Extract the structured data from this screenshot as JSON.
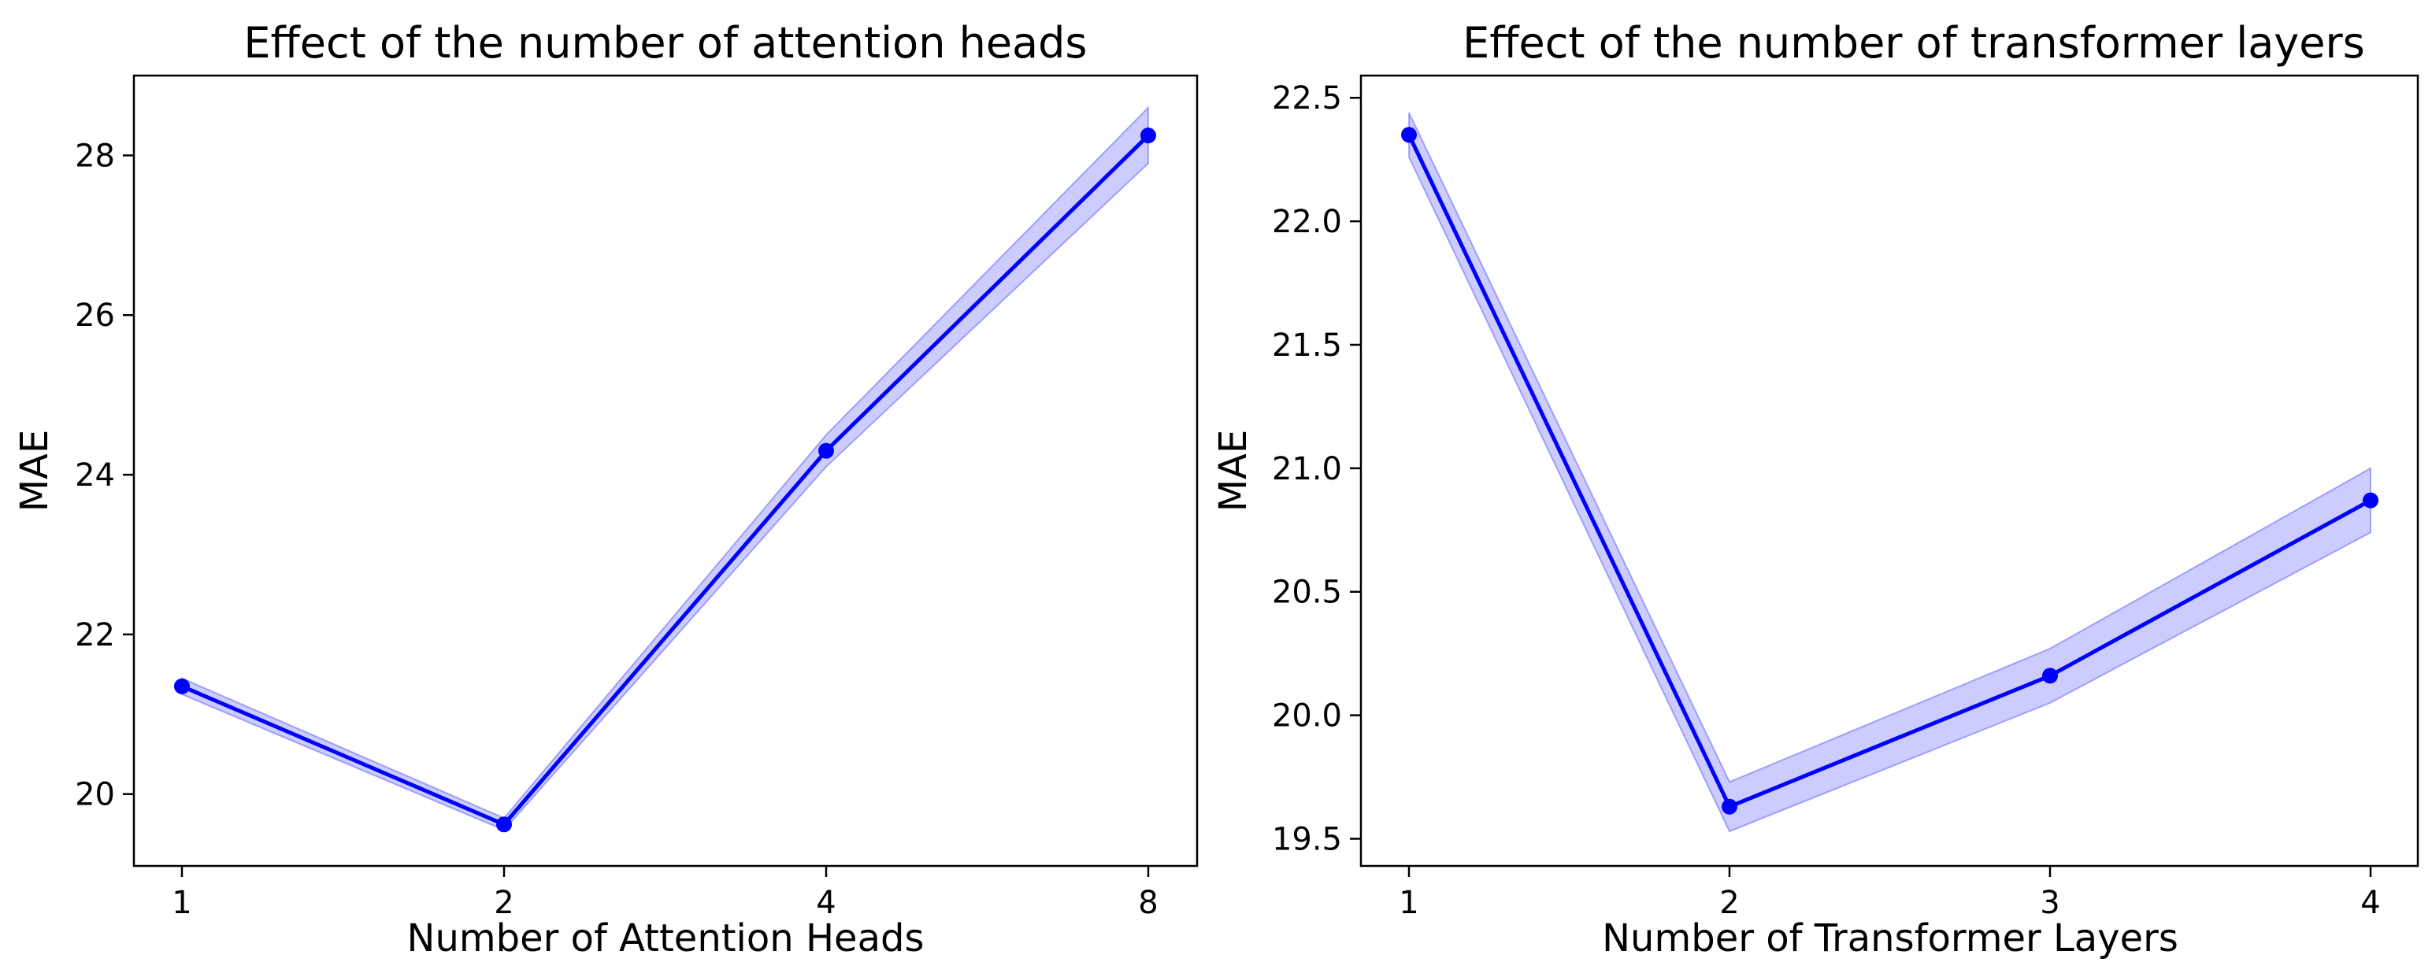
{
  "colors": {
    "line": "#0000ff",
    "band_fill": "#0000ff",
    "axes": "#000000",
    "background": "#ffffff"
  },
  "chart_data": [
    {
      "type": "line",
      "title": "Effect of the number of attention heads",
      "xlabel": "Number of Attention Heads",
      "ylabel": "MAE",
      "x_scale": "categorical",
      "categories": [
        "1",
        "2",
        "4",
        "8"
      ],
      "ylim": [
        19.1,
        29.0
      ],
      "y_ticks": [
        20,
        22,
        24,
        26,
        28
      ],
      "y_tick_labels": [
        "20",
        "22",
        "24",
        "26",
        "28"
      ],
      "grid": false,
      "series": [
        {
          "values": [
            21.35,
            19.62,
            24.3,
            28.25
          ],
          "band_lower": [
            21.25,
            19.55,
            24.1,
            27.9
          ],
          "band_upper": [
            21.45,
            19.7,
            24.5,
            28.6
          ]
        }
      ]
    },
    {
      "type": "line",
      "title": "Effect of the number of transformer layers",
      "xlabel": "Number of Transformer Layers",
      "ylabel": "MAE",
      "x_scale": "linear",
      "x": [
        1,
        2,
        3,
        4
      ],
      "x_ticks": [
        1,
        2,
        3,
        4
      ],
      "x_tick_labels": [
        "1",
        "2",
        "3",
        "4"
      ],
      "ylim": [
        19.39,
        22.59
      ],
      "y_ticks": [
        19.5,
        20.0,
        20.5,
        21.0,
        21.5,
        22.0,
        22.5
      ],
      "y_tick_labels": [
        "19.5",
        "20.0",
        "20.5",
        "21.0",
        "21.5",
        "22.0",
        "22.5"
      ],
      "grid": false,
      "series": [
        {
          "values": [
            22.35,
            19.63,
            20.16,
            20.87
          ],
          "band_lower": [
            22.26,
            19.53,
            20.05,
            20.74
          ],
          "band_upper": [
            22.44,
            19.73,
            20.27,
            21.0
          ]
        }
      ]
    }
  ]
}
